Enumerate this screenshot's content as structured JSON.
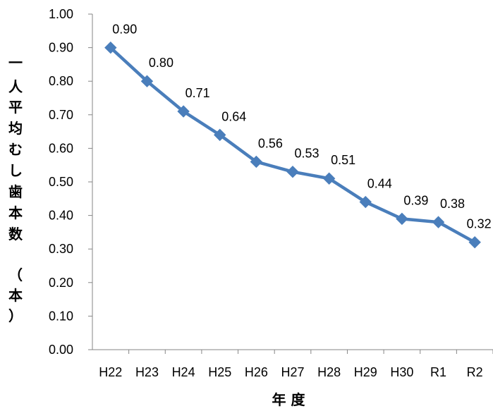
{
  "chart_data": {
    "type": "line",
    "categories": [
      "H22",
      "H23",
      "H24",
      "H25",
      "H26",
      "H27",
      "H28",
      "H29",
      "H30",
      "R1",
      "R2"
    ],
    "series": [
      {
        "values": [
          0.9,
          0.8,
          0.71,
          0.64,
          0.56,
          0.53,
          0.51,
          0.44,
          0.39,
          0.38,
          0.32
        ],
        "labels": [
          "0.90",
          "0.80",
          "0.71",
          "0.64",
          "0.56",
          "0.53",
          "0.51",
          "0.44",
          "0.39",
          "0.38",
          "0.32"
        ],
        "color": "#4a7ebb",
        "marker": "diamond"
      }
    ],
    "y_ticks": [
      "0.00",
      "0.10",
      "0.20",
      "0.30",
      "0.40",
      "0.50",
      "0.60",
      "0.70",
      "0.80",
      "0.90",
      "1.00"
    ],
    "ylim": [
      0,
      1.0
    ],
    "ylabel_chars": [
      "一",
      "人",
      "平",
      "均",
      "む",
      "し",
      "歯",
      "本",
      "数",
      "（",
      "本",
      "）"
    ],
    "xlabel": "年 度",
    "grid": false,
    "legend": "none"
  }
}
